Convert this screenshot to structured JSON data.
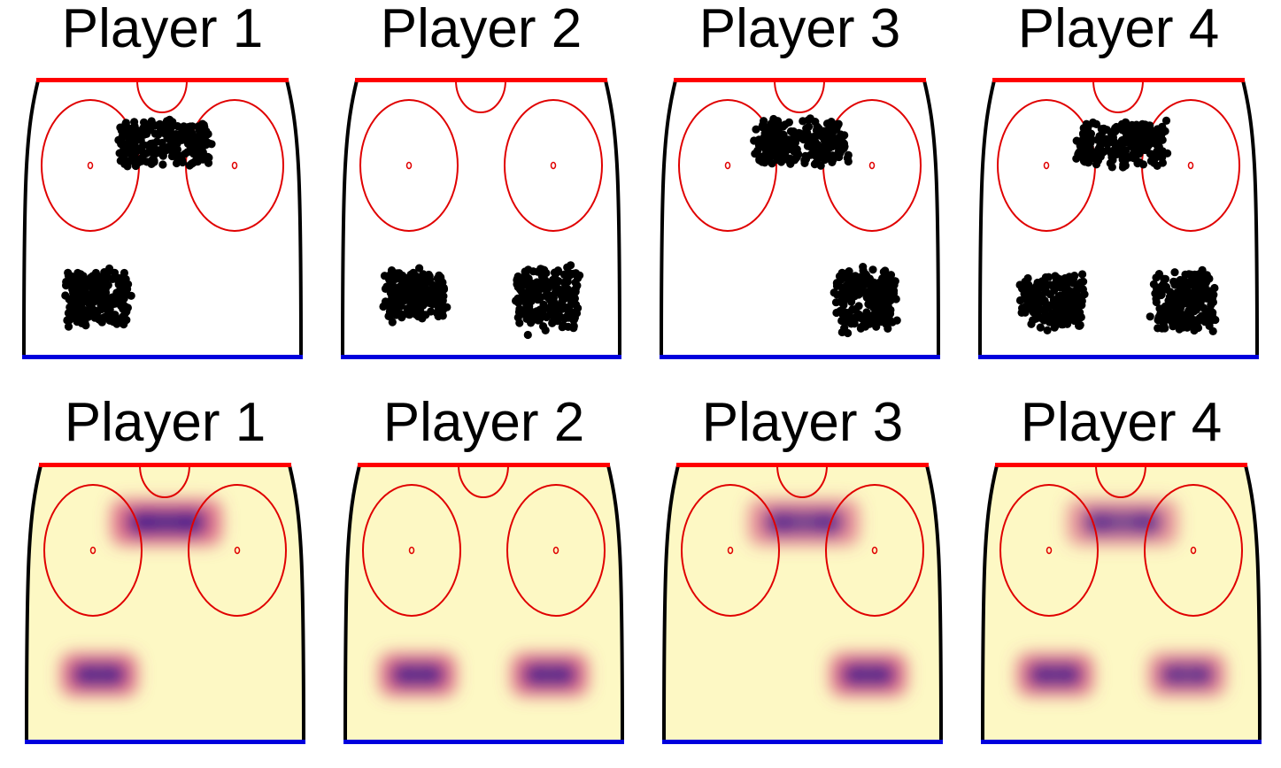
{
  "colors": {
    "rink_outline": "#000000",
    "top_line": "#ff0000",
    "bottom_line": "#0000dd",
    "circles": "#e00000",
    "points": "#000000",
    "density_low": "#fdf8c4",
    "density_mid": "#d84a78",
    "density_high": "#3b1c8c"
  },
  "chart_data": [
    {
      "type": "scatter",
      "title": "Player 1",
      "xlim": [
        0,
        1
      ],
      "ylim": [
        0,
        1
      ],
      "clusters": [
        {
          "region": "slot",
          "x_range": [
            0.32,
            0.69
          ],
          "y_range": [
            0.67,
            0.87
          ]
        },
        {
          "region": "point-left",
          "x_range": [
            0.14,
            0.39
          ],
          "y_range": [
            0.09,
            0.34
          ]
        }
      ]
    },
    {
      "type": "scatter",
      "title": "Player 2",
      "xlim": [
        0,
        1
      ],
      "ylim": [
        0,
        1
      ],
      "clusters": [
        {
          "region": "point-left",
          "x_range": [
            0.14,
            0.39
          ],
          "y_range": [
            0.12,
            0.33
          ]
        },
        {
          "region": "point-right",
          "x_range": [
            0.61,
            0.86
          ],
          "y_range": [
            0.08,
            0.35
          ]
        }
      ]
    },
    {
      "type": "scatter",
      "title": "Player 3",
      "xlim": [
        0,
        1
      ],
      "ylim": [
        0,
        1
      ],
      "clusters": [
        {
          "region": "slot",
          "x_range": [
            0.32,
            0.69
          ],
          "y_range": [
            0.67,
            0.87
          ]
        },
        {
          "region": "point-right",
          "x_range": [
            0.61,
            0.86
          ],
          "y_range": [
            0.08,
            0.35
          ]
        }
      ]
    },
    {
      "type": "scatter",
      "title": "Player 4",
      "xlim": [
        0,
        1
      ],
      "ylim": [
        0,
        1
      ],
      "clusters": [
        {
          "region": "slot",
          "x_range": [
            0.32,
            0.69
          ],
          "y_range": [
            0.67,
            0.87
          ]
        },
        {
          "region": "point-left",
          "x_range": [
            0.14,
            0.39
          ],
          "y_range": [
            0.08,
            0.33
          ]
        },
        {
          "region": "point-right",
          "x_range": [
            0.61,
            0.86
          ],
          "y_range": [
            0.08,
            0.33
          ]
        }
      ]
    },
    {
      "type": "heatmap",
      "title": "Player 1",
      "xlim": [
        0,
        1
      ],
      "ylim": [
        0,
        1
      ],
      "hotspots": [
        {
          "region": "slot",
          "x_range": [
            0.32,
            0.69
          ],
          "y_range": [
            0.72,
            0.86
          ],
          "intensity": 1.0
        },
        {
          "region": "point-left",
          "x_range": [
            0.14,
            0.39
          ],
          "y_range": [
            0.18,
            0.31
          ],
          "intensity": 1.0
        }
      ]
    },
    {
      "type": "heatmap",
      "title": "Player 2",
      "xlim": [
        0,
        1
      ],
      "ylim": [
        0,
        1
      ],
      "hotspots": [
        {
          "region": "point-left",
          "x_range": [
            0.14,
            0.39
          ],
          "y_range": [
            0.18,
            0.31
          ],
          "intensity": 1.0
        },
        {
          "region": "point-right",
          "x_range": [
            0.61,
            0.86
          ],
          "y_range": [
            0.18,
            0.31
          ],
          "intensity": 1.0
        }
      ]
    },
    {
      "type": "heatmap",
      "title": "Player 3",
      "xlim": [
        0,
        1
      ],
      "ylim": [
        0,
        1
      ],
      "hotspots": [
        {
          "region": "slot",
          "x_range": [
            0.32,
            0.69
          ],
          "y_range": [
            0.72,
            0.86
          ],
          "intensity": 0.8
        },
        {
          "region": "point-right",
          "x_range": [
            0.61,
            0.86
          ],
          "y_range": [
            0.18,
            0.31
          ],
          "intensity": 1.0
        }
      ]
    },
    {
      "type": "heatmap",
      "title": "Player 4",
      "xlim": [
        0,
        1
      ],
      "ylim": [
        0,
        1
      ],
      "hotspots": [
        {
          "region": "slot",
          "x_range": [
            0.32,
            0.69
          ],
          "y_range": [
            0.72,
            0.86
          ],
          "intensity": 0.75
        },
        {
          "region": "point-left",
          "x_range": [
            0.14,
            0.39
          ],
          "y_range": [
            0.18,
            0.31
          ],
          "intensity": 0.95
        },
        {
          "region": "point-right",
          "x_range": [
            0.61,
            0.86
          ],
          "y_range": [
            0.18,
            0.31
          ],
          "intensity": 0.85
        }
      ]
    }
  ]
}
